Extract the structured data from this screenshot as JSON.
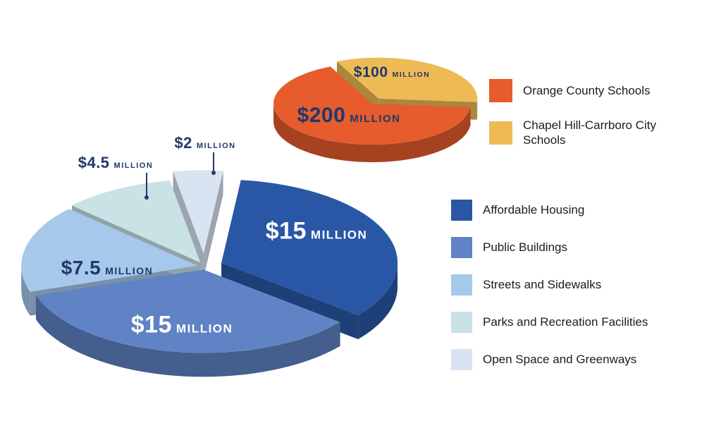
{
  "page": {
    "background": "#FFFFFF"
  },
  "colors": {
    "navy_label": "#20386B",
    "white_label": "#FFFFFF",
    "legend_text": "#1C1C1C"
  },
  "chart_data": [
    {
      "type": "pie",
      "name": "school-bonds",
      "unit": "USD",
      "legend_position": "right",
      "labels_on_slices": true,
      "slices": [
        {
          "label": "Orange County Schools",
          "value": 200,
          "display": "$200",
          "suffix": "MILLION",
          "color": "#E65C2C"
        },
        {
          "label": "Chapel Hill-Carrboro City Schools",
          "value": 100,
          "display": "$100",
          "suffix": "MILLION",
          "color": "#EDBA55"
        }
      ]
    },
    {
      "type": "pie",
      "name": "municipal-bonds",
      "unit": "USD",
      "legend_position": "right",
      "labels_on_slices": true,
      "slices": [
        {
          "label": "Affordable Housing",
          "value": 15,
          "display": "$15",
          "suffix": "MILLION",
          "color": "#2A57A5"
        },
        {
          "label": "Public Buildings",
          "value": 15,
          "display": "$15",
          "suffix": "MILLION",
          "color": "#5F83C4"
        },
        {
          "label": "Streets and Sidewalks",
          "value": 7.5,
          "display": "$7.5",
          "suffix": "MILLION",
          "color": "#A6C8EA"
        },
        {
          "label": "Parks and Recreation Facilities",
          "value": 4.5,
          "display": "$4.5",
          "suffix": "MILLION",
          "color": "#C9E2E6"
        },
        {
          "label": "Open Space and Greenways",
          "value": 2,
          "display": "$2",
          "suffix": "MILLION",
          "color": "#D9E4F2"
        }
      ]
    }
  ]
}
